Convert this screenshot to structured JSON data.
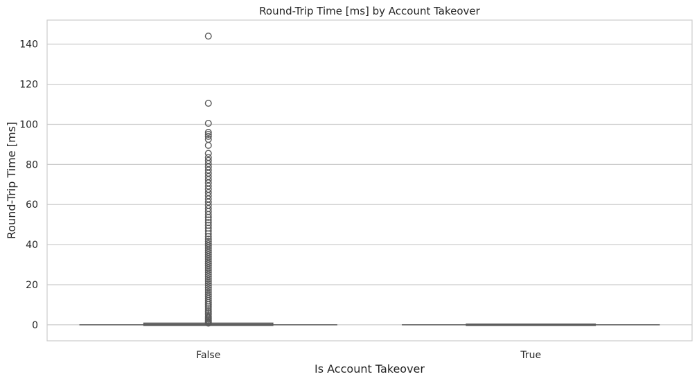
{
  "chart_data": {
    "type": "box",
    "title": "Round-Trip Time [ms] by Account Takeover",
    "xlabel": "Is Account Takeover",
    "ylabel": "Round-Trip Time [ms]",
    "categories": [
      "False",
      "True"
    ],
    "ylim": [
      -8,
      152
    ],
    "yticks": [
      0,
      20,
      40,
      60,
      80,
      100,
      120,
      140
    ],
    "grid": "horizontal",
    "colors": {
      "box_line": "#5a5a5a",
      "grid": "#cccccc",
      "frame": "#cccccc",
      "text": "#262626"
    },
    "boxes": [
      {
        "category": "False",
        "min": 0,
        "q1": 0,
        "median": 0,
        "q3": 0.5,
        "max": 0.5,
        "outliers": [
          0.8,
          1.2,
          1.7,
          2.3,
          2.9,
          3.5,
          4.2,
          5,
          5.8,
          6.6,
          7.5,
          8.4,
          9.3,
          10.2,
          11.2,
          12.2,
          13.2,
          14.2,
          15.2,
          16.3,
          17.4,
          18.5,
          19.6,
          20.7,
          21.8,
          22.9,
          24,
          25.1,
          26.2,
          27.3,
          28.4,
          29.5,
          30.6,
          31.7,
          32.8,
          33.9,
          35,
          36.1,
          37.2,
          38.3,
          39.4,
          40.5,
          41.6,
          42.7,
          44,
          45.4,
          46.8,
          48.2,
          49.6,
          51,
          52.3,
          53.6,
          55,
          56.5,
          58,
          59.6,
          61.2,
          62.8,
          64.4,
          66,
          67.6,
          69.2,
          70.8,
          72.4,
          74,
          75.6,
          77.2,
          78.8,
          80.4,
          82,
          83.5,
          85.5,
          89.5,
          92.5,
          94,
          95,
          96,
          100.5,
          110.5,
          144
        ]
      },
      {
        "category": "True",
        "min": 0,
        "q1": 0,
        "median": 0,
        "q3": 0,
        "max": 0,
        "outliers": []
      }
    ]
  }
}
